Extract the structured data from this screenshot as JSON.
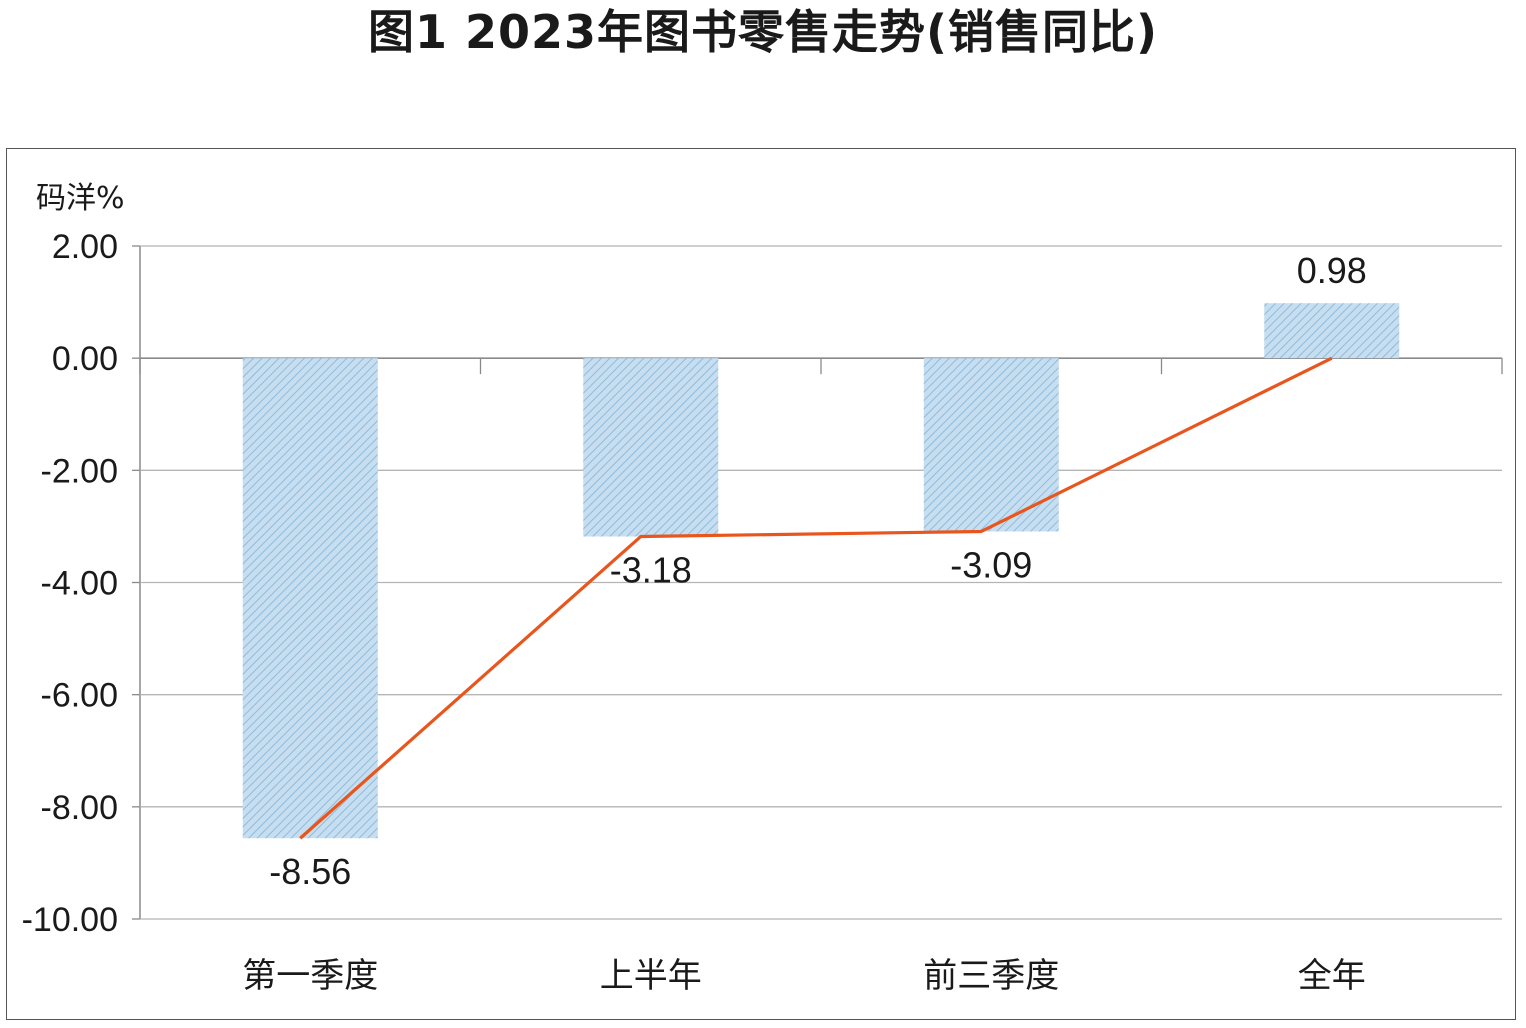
{
  "figure": {
    "title": "图1  2023年图书零售走势(销售同比)"
  },
  "chart_data": {
    "type": "bar",
    "title": "图1  2023年图书零售走势(销售同比)",
    "ylabel": "码洋%",
    "xlabel": "",
    "categories": [
      "第一季度",
      "上半年",
      "前三季度",
      "全年"
    ],
    "values": [
      -8.56,
      -3.18,
      -3.09,
      0.98
    ],
    "value_labels": [
      "-8.56",
      "-3.18",
      "-3.09",
      "0.98"
    ],
    "overlay_line": true,
    "ylim": [
      -10,
      2
    ],
    "yticks": [
      2,
      0,
      -2,
      -4,
      -6,
      -8,
      -10
    ],
    "ytick_labels": [
      "2.00",
      "0.00",
      "-2.00",
      "-4.00",
      "-6.00",
      "-8.00",
      "-10.00"
    ],
    "grid": true,
    "colors": {
      "bar": "#a9cde6",
      "bar_hatch": "#7fb0d4",
      "line": "#e8561e",
      "grid": "#b5b5b5"
    }
  }
}
